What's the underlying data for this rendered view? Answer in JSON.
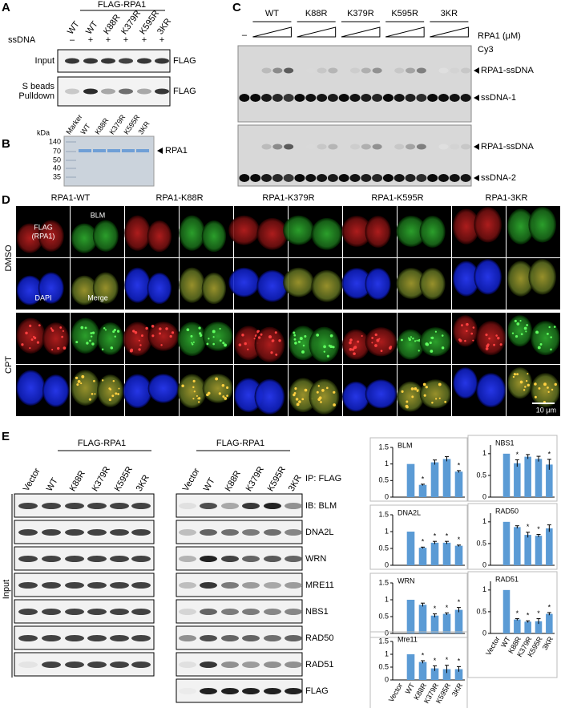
{
  "panels": {
    "A": {
      "label": "A",
      "header": "FLAG-RPA1",
      "lanes": [
        "WT",
        "WT",
        "K88R",
        "K379R",
        "K595R",
        "3KR"
      ],
      "row_label": "ssDNA",
      "ssdna": [
        "–",
        "+",
        "+",
        "+",
        "+",
        "+"
      ],
      "blots": [
        {
          "label": [
            "Input"
          ],
          "antibody": "FLAG"
        },
        {
          "label": [
            "S beads",
            "Pulldown"
          ],
          "antibody": "FLAG"
        }
      ]
    },
    "B": {
      "label": "B",
      "unit": "kDa",
      "lanes": [
        "Marker",
        "WT",
        "K88R",
        "K379R",
        "K595R",
        "3KR"
      ],
      "markers": [
        "140",
        "70",
        "50",
        "40",
        "35"
      ],
      "band": "RPA1"
    },
    "C": {
      "label": "C",
      "dash": "–",
      "groups": [
        "WT",
        "K88R",
        "K379R",
        "K595R",
        "3KR"
      ],
      "conc": "RPA1 (μM)",
      "cy3": "Cy3",
      "gels": [
        {
          "upper": "RPA1-ssDNA",
          "lower": "ssDNA-1"
        },
        {
          "upper": "RPA1-ssDNA",
          "lower": "ssDNA-2"
        }
      ]
    },
    "D": {
      "label": "D",
      "columns": [
        "RPA1-WT",
        "RPA1-K88R",
        "RPA1-K379R",
        "RPA1-K595R",
        "RPA1-3KR"
      ],
      "rows": [
        "DMSO",
        "CPT"
      ],
      "tiles": {
        "flag": [
          "FLAG",
          "(RPA1)"
        ],
        "blm": "BLM",
        "dapi": "DAPI",
        "merge": "Merge"
      },
      "scale": "10 μm"
    },
    "E": {
      "label": "E",
      "header": "FLAG-RPA1",
      "lanes": [
        "Vector",
        "WT",
        "K88R",
        "K379R",
        "K595R",
        "3KR"
      ],
      "input": "Input",
      "ip": "IP: FLAG",
      "blots": [
        "IB: BLM",
        "DNA2L",
        "WRN",
        "MRE11",
        "NBS1",
        "RAD50",
        "RAD51",
        "FLAG"
      ]
    }
  },
  "chart_data": [
    {
      "type": "bar",
      "title": "BLM",
      "values": [
        0,
        1,
        0.37,
        1.05,
        1.15,
        0.77
      ],
      "errors": [
        0,
        0,
        0.02,
        0.07,
        0.07,
        0.03
      ],
      "significance": [
        null,
        null,
        "*",
        null,
        null,
        "*"
      ],
      "ylim": [
        0,
        1.5
      ],
      "yticks": [
        0,
        0.5,
        1,
        1.5
      ],
      "color": "#5b9bd5"
    },
    {
      "type": "bar",
      "title": "NBS1",
      "values": [
        0,
        1,
        0.78,
        0.93,
        0.88,
        0.75
      ],
      "errors": [
        0,
        0,
        0.08,
        0.05,
        0.06,
        0.12
      ],
      "significance": [
        null,
        null,
        "*",
        null,
        null,
        "*"
      ],
      "ylim": [
        0,
        1.2
      ],
      "yticks": [
        0,
        0.5,
        1
      ],
      "color": "#5b9bd5"
    },
    {
      "type": "bar",
      "title": "DNA2L",
      "values": [
        0,
        1,
        0.52,
        0.67,
        0.67,
        0.58
      ],
      "errors": [
        0,
        0,
        0.02,
        0.04,
        0.04,
        0.02
      ],
      "significance": [
        null,
        null,
        "*",
        "*",
        "*",
        "*"
      ],
      "ylim": [
        0,
        1.5
      ],
      "yticks": [
        0,
        0.5,
        1,
        1.5
      ],
      "color": "#5b9bd5"
    },
    {
      "type": "bar",
      "title": "RAD50",
      "values": [
        0,
        1,
        0.88,
        0.7,
        0.68,
        0.85
      ],
      "errors": [
        0,
        0,
        0.03,
        0.06,
        0.03,
        0.08
      ],
      "significance": [
        null,
        null,
        null,
        "*",
        "*",
        null
      ],
      "ylim": [
        0,
        1.2
      ],
      "yticks": [
        0,
        0.5,
        1
      ],
      "color": "#5b9bd5"
    },
    {
      "type": "bar",
      "title": "WRN",
      "values": [
        0,
        1,
        0.85,
        0.53,
        0.58,
        0.7
      ],
      "errors": [
        0,
        0,
        0.05,
        0.05,
        0.03,
        0.07
      ],
      "significance": [
        null,
        null,
        null,
        "*",
        "*",
        "*"
      ],
      "ylim": [
        0,
        1.5
      ],
      "yticks": [
        0,
        0.5,
        1,
        1.5
      ],
      "color": "#5b9bd5"
    },
    {
      "type": "bar",
      "title": "RAD51",
      "categories": [
        "Vector",
        "WT",
        "K88R",
        "K379R",
        "K595R",
        "3KR"
      ],
      "values": [
        0,
        1,
        0.32,
        0.27,
        0.28,
        0.45
      ],
      "errors": [
        0,
        0,
        0.02,
        0.02,
        0.06,
        0.03
      ],
      "significance": [
        null,
        null,
        "*",
        "*",
        "*",
        "*"
      ],
      "ylim": [
        0,
        1.2
      ],
      "yticks": [
        0,
        0.5,
        1
      ],
      "color": "#5b9bd5"
    },
    {
      "type": "bar",
      "title": "Mre11",
      "categories": [
        "Vector",
        "WT",
        "K88R",
        "K379R",
        "K595R",
        "3KR"
      ],
      "values": [
        0,
        1,
        0.7,
        0.45,
        0.42,
        0.42
      ],
      "errors": [
        0,
        0,
        0.05,
        0.1,
        0.15,
        0.1
      ],
      "significance": [
        null,
        null,
        "*",
        "*",
        "*",
        "*"
      ],
      "ylim": [
        0,
        1.5
      ],
      "yticks": [
        0,
        0.5,
        1,
        1.5
      ],
      "color": "#5b9bd5"
    }
  ]
}
